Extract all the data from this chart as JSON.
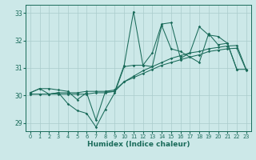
{
  "xlabel": "Humidex (Indice chaleur)",
  "bg_color": "#cce8e8",
  "grid_color": "#aacccc",
  "line_color": "#1a6b5a",
  "xlim": [
    -0.5,
    23.5
  ],
  "ylim": [
    28.7,
    33.3
  ],
  "xticks": [
    0,
    1,
    2,
    3,
    4,
    5,
    6,
    7,
    8,
    9,
    10,
    11,
    12,
    13,
    14,
    15,
    16,
    17,
    18,
    19,
    20,
    21,
    22,
    23
  ],
  "yticks": [
    29,
    30,
    31,
    32,
    33
  ],
  "series": [
    {
      "x": [
        0,
        1,
        2,
        3,
        4,
        5,
        6,
        7,
        8,
        9,
        10,
        11,
        12,
        13,
        14,
        15,
        16,
        17,
        18,
        19,
        20,
        21,
        22
      ],
      "y": [
        30.1,
        30.25,
        30.05,
        30.1,
        29.7,
        29.45,
        29.35,
        28.85,
        29.5,
        30.1,
        31.05,
        31.1,
        31.1,
        31.05,
        32.55,
        31.7,
        31.6,
        31.4,
        31.2,
        32.25,
        31.85,
        31.9,
        30.95
      ]
    },
    {
      "x": [
        0,
        1,
        2,
        3,
        4,
        5,
        6,
        7,
        8,
        9,
        10,
        11,
        12,
        13,
        14,
        15,
        16,
        17,
        18,
        19,
        20,
        21,
        22,
        23
      ],
      "y": [
        30.1,
        30.25,
        30.25,
        30.2,
        30.15,
        29.85,
        30.1,
        29.1,
        30.15,
        30.15,
        31.1,
        33.05,
        31.1,
        31.55,
        32.6,
        32.65,
        31.35,
        31.55,
        32.5,
        32.2,
        32.15,
        31.9,
        30.95,
        30.95
      ]
    },
    {
      "x": [
        0,
        1,
        2,
        3,
        4,
        5,
        6,
        7,
        8,
        9,
        10,
        11,
        12,
        13,
        14,
        15,
        16,
        17,
        18,
        19,
        20,
        21,
        22,
        23
      ],
      "y": [
        30.05,
        30.05,
        30.05,
        30.1,
        30.1,
        30.1,
        30.15,
        30.15,
        30.15,
        30.2,
        30.5,
        30.7,
        30.9,
        31.05,
        31.2,
        31.35,
        31.45,
        31.55,
        31.6,
        31.7,
        31.75,
        31.8,
        31.82,
        30.95
      ]
    },
    {
      "x": [
        0,
        1,
        2,
        3,
        4,
        5,
        6,
        7,
        8,
        9,
        10,
        11,
        12,
        13,
        14,
        15,
        16,
        17,
        18,
        19,
        20,
        21,
        22,
        23
      ],
      "y": [
        30.05,
        30.05,
        30.05,
        30.05,
        30.05,
        30.05,
        30.05,
        30.1,
        30.1,
        30.15,
        30.5,
        30.65,
        30.8,
        30.95,
        31.1,
        31.2,
        31.3,
        31.4,
        31.48,
        31.6,
        31.65,
        31.7,
        31.72,
        30.92
      ]
    }
  ]
}
